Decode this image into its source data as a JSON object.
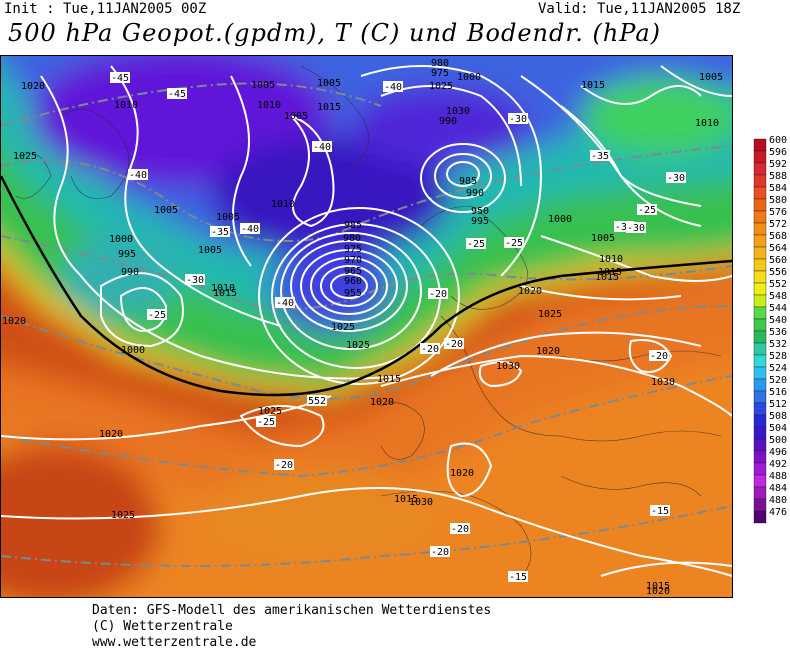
{
  "header": {
    "init": "Init : Tue,11JAN2005 00Z",
    "valid": "Valid: Tue,11JAN2005 18Z",
    "title": "500 hPa Geopot.(gpdm), T (C) und Bodendr. (hPa)"
  },
  "scale": {
    "values": [
      "600",
      "596",
      "592",
      "588",
      "584",
      "580",
      "576",
      "572",
      "568",
      "564",
      "560",
      "556",
      "552",
      "548",
      "544",
      "540",
      "536",
      "532",
      "528",
      "524",
      "520",
      "516",
      "512",
      "508",
      "504",
      "500",
      "496",
      "492",
      "488",
      "484",
      "480",
      "476"
    ],
    "colors": [
      "#b01020",
      "#c81828",
      "#d82830",
      "#e03828",
      "#e85020",
      "#ec6418",
      "#f07818",
      "#f48c18",
      "#f4a018",
      "#f4b418",
      "#f4c818",
      "#f4dc18",
      "#f0f018",
      "#c8f018",
      "#5ad84a",
      "#3cc84a",
      "#28b860",
      "#30c8a0",
      "#30d8d8",
      "#30c0f0",
      "#2898f0",
      "#3070e8",
      "#2c48e0",
      "#2828d8",
      "#3818c8",
      "#5810c0",
      "#8010c8",
      "#a018d8",
      "#c028e0",
      "#a018b8",
      "#781098",
      "#500070"
    ]
  },
  "pressure_labels": [
    "1020",
    "1025",
    "1010",
    "1005",
    "1015",
    "1010",
    "1005",
    "1000",
    "995",
    "990",
    "1005",
    "1010",
    "1015",
    "1000",
    "1020",
    "1020",
    "1025",
    "1025",
    "1030",
    "1030",
    "1030",
    "1025",
    "1020",
    "1015",
    "1010",
    "1005",
    "1000",
    "995",
    "990",
    "985",
    "980",
    "975",
    "970",
    "965",
    "960",
    "955",
    "950",
    "990",
    "985",
    "980",
    "975",
    "1005",
    "1010",
    "1005",
    "1000",
    "1005",
    "1015",
    "1020",
    "1015",
    "1010",
    "1005",
    "1015",
    "1020",
    "1020",
    "1015",
    "1015",
    "1020",
    "1025",
    "1030",
    "1025",
    "1025"
  ],
  "temp_labels": [
    "-45",
    "-45",
    "-40",
    "-40",
    "-40",
    "-40",
    "-40",
    "-35",
    "-30",
    "-25",
    "-25",
    "-20",
    "-20",
    "-20",
    "-20",
    "-25",
    "-30",
    "-25",
    "-30",
    "-35",
    "-30",
    "-25",
    "-30",
    "-20",
    "-15",
    "-15",
    "-20",
    "-20"
  ],
  "height_label": "552",
  "footer": {
    "line1": "Daten: GFS-Modell des amerikanischen Wetterdienstes",
    "line2": "(C) Wetterzentrale",
    "line3": "www.wetterzentrale.de"
  }
}
